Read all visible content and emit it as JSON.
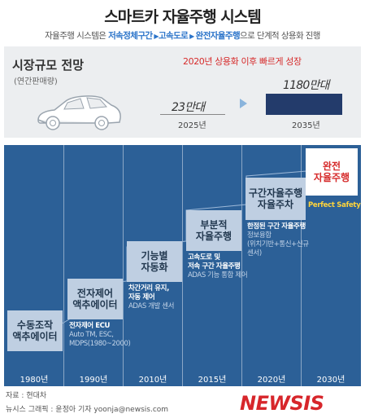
{
  "title": "스마트카 자율주행 시스템",
  "subtitle": {
    "prefix": "자율주행 시스템은 ",
    "stage1": "저속정체구간",
    "stage2": "고속도로",
    "stage3": "완전자율주행",
    "suffix": "으로 단계적 상용화 진행"
  },
  "market": {
    "title": "시장규모 전망",
    "unit": "(연간판매량)",
    "growth_note": "2020년 상용화 이후 빠르게 성장",
    "value_2025": "23만대",
    "year_2025": "2025년",
    "value_2035": "1180만대",
    "year_2035": "2035년",
    "colors": {
      "bar": "#233b6b",
      "arrow": "#8ab4dc",
      "growth_text": "#d62b2b"
    }
  },
  "timeline": {
    "years": [
      "1980년",
      "1990년",
      "2010년",
      "2015년",
      "2020년",
      "2030년"
    ],
    "stages": [
      {
        "name": "수동조작\n액추에이터",
        "desc_main": "",
        "desc_sub": ""
      },
      {
        "name": "전자제어\n액추에이터",
        "desc_main": "전자제어 ECU",
        "desc_sub": "Auto TM, ESC,\nMDPS(1980~2000)"
      },
      {
        "name": "기능별\n자동화",
        "desc_main": "차간거리 유지,\n자동 제어",
        "desc_sub": "ADAS 개발 센서"
      },
      {
        "name": "부분적\n자율주행",
        "desc_main": "고속도로 및\n저속 구간 자율주행",
        "desc_sub": "ADAS 기능 통합 제어"
      },
      {
        "name": "구간자율주행\n자율주차",
        "desc_main": "한정된 구간 자율주행",
        "desc_sub": "정보융합\n(위치기반+통신+신규센서)"
      },
      {
        "name": "완전\n자율주행",
        "desc_main": "",
        "desc_sub": "",
        "note": "Perfect Safety"
      }
    ],
    "colors": {
      "background": "#2c6097",
      "stage": "#bfcfe2",
      "final_stage_text": "#d62b2b",
      "note": "#ffd43b"
    }
  },
  "footer": {
    "source": "자료 : 현대차",
    "credit": "뉴시스 그래픽 : 윤정아 기자 yoonja@newsis.com",
    "logo": "NEWSIS"
  }
}
